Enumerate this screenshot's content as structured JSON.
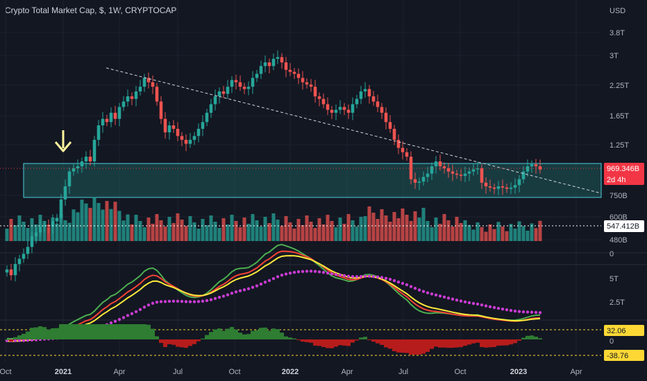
{
  "header": {
    "title": "Crypto Total Market Cap, $, 1W, CRYPTOCAP"
  },
  "colors": {
    "bg": "#131722",
    "up": "#26a69a",
    "down": "#ef5350",
    "zone": "#1e5a5a",
    "zone_border": "#4dd0e1",
    "sma_fast": "#4caf50",
    "sma_mid": "#f44336",
    "sma_slow": "#ffeb3b",
    "sma_dots": "#c83cd2",
    "osc_pos": "#2e7d32",
    "osc_neg": "#b71c1c",
    "price_tag": "#f23645",
    "level_tag": "#ffffff",
    "arrow": "#fff59d"
  },
  "chart_data": [
    {
      "type": "candlestick",
      "title": "Crypto Total Market Cap, $, 1W, CRYPTOCAP",
      "y_scale": "log",
      "y_unit": "USD",
      "yticks": [
        "3.8T",
        "3T",
        "2.25T",
        "1.65T",
        "1.25T",
        "750B",
        "600B",
        "480B"
      ],
      "xticks": [
        "Oct",
        "2021",
        "Apr",
        "Jul",
        "Oct",
        "2022",
        "Apr",
        "Jul",
        "Oct",
        "2023",
        "Apr"
      ],
      "year_ticks": [
        "2021",
        "2022",
        "2023"
      ],
      "last_price": "969.346B",
      "countdown": "2d 4h",
      "marked_level": "547.412B",
      "close_trajectory_T": [
        0.36,
        0.34,
        0.38,
        0.4,
        0.42,
        0.45,
        0.5,
        0.52,
        0.55,
        0.56,
        0.55,
        0.58,
        0.6,
        0.72,
        0.82,
        0.95,
        0.98,
        1.0,
        1.05,
        1.1,
        1.05,
        1.3,
        1.5,
        1.6,
        1.55,
        1.7,
        1.6,
        1.8,
        1.9,
        2.0,
        1.95,
        2.1,
        2.2,
        2.4,
        2.3,
        2.2,
        1.9,
        1.6,
        1.4,
        1.5,
        1.45,
        1.35,
        1.3,
        1.25,
        1.3,
        1.35,
        1.45,
        1.55,
        1.7,
        1.85,
        2.0,
        2.1,
        2.05,
        2.2,
        2.35,
        2.3,
        2.2,
        2.15,
        2.2,
        2.4,
        2.5,
        2.7,
        2.8,
        2.7,
        2.9,
        2.95,
        2.8,
        2.6,
        2.55,
        2.5,
        2.4,
        2.3,
        2.25,
        2.2,
        2.0,
        1.95,
        1.85,
        1.75,
        1.7,
        1.75,
        1.8,
        1.75,
        1.7,
        1.85,
        1.95,
        2.1,
        2.15,
        2.0,
        1.9,
        1.8,
        1.7,
        1.55,
        1.45,
        1.3,
        1.2,
        1.15,
        1.1,
        0.88,
        0.85,
        0.86,
        0.9,
        0.93,
        1.0,
        1.05,
        1.0,
        0.98,
        0.95,
        0.93,
        0.92,
        0.91,
        0.93,
        0.95,
        0.97,
        0.98,
        0.85,
        0.82,
        0.81,
        0.8,
        0.82,
        0.81,
        0.8,
        0.81,
        0.83,
        0.88,
        0.95,
        1.0,
        1.02,
        1.0,
        0.969
      ],
      "oscillator_levels": [
        "32.06",
        "0",
        "-38.76"
      ],
      "ma_axis_ticks": [
        "5T",
        "2.5T"
      ],
      "volume_axis_ticks": [
        "0"
      ]
    }
  ]
}
